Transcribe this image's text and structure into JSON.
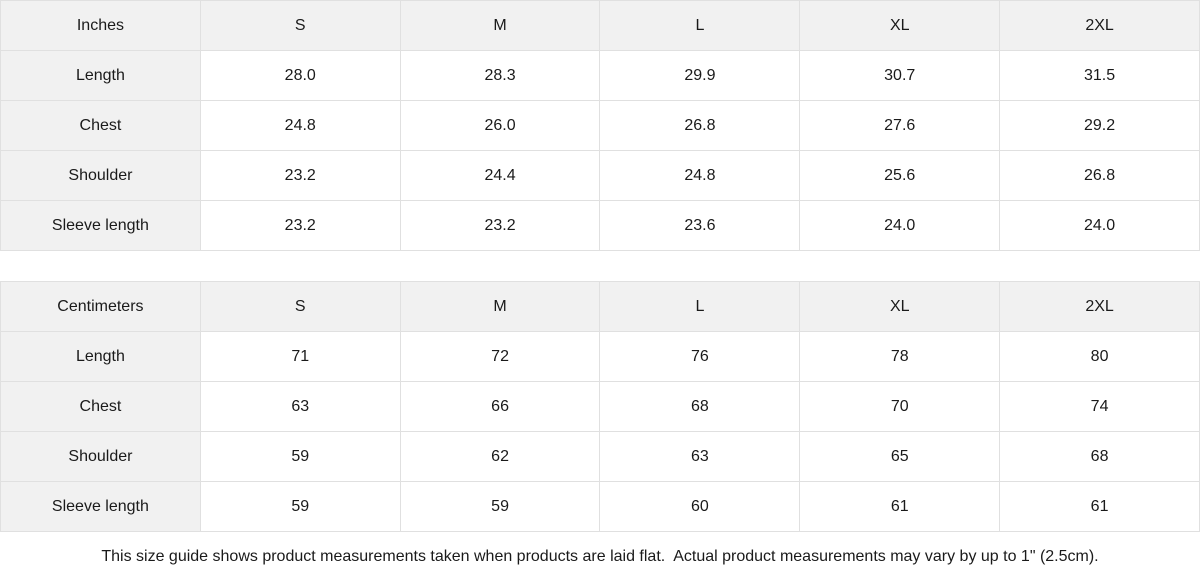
{
  "colors": {
    "header_bg": "#f1f1f1",
    "border": "#e0e0e0",
    "text": "#1a1a1a",
    "background": "#ffffff"
  },
  "chart_data": [
    {
      "type": "table",
      "title": "Inches",
      "columns": [
        "S",
        "M",
        "L",
        "XL",
        "2XL"
      ],
      "rows": [
        {
          "label": "Length",
          "values": [
            "28.0",
            "28.3",
            "29.9",
            "30.7",
            "31.5"
          ]
        },
        {
          "label": "Chest",
          "values": [
            "24.8",
            "26.0",
            "26.8",
            "27.6",
            "29.2"
          ]
        },
        {
          "label": "Shoulder",
          "values": [
            "23.2",
            "24.4",
            "24.8",
            "25.6",
            "26.8"
          ]
        },
        {
          "label": "Sleeve length",
          "values": [
            "23.2",
            "23.2",
            "23.6",
            "24.0",
            "24.0"
          ]
        }
      ]
    },
    {
      "type": "table",
      "title": "Centimeters",
      "columns": [
        "S",
        "M",
        "L",
        "XL",
        "2XL"
      ],
      "rows": [
        {
          "label": "Length",
          "values": [
            "71",
            "72",
            "76",
            "78",
            "80"
          ]
        },
        {
          "label": "Chest",
          "values": [
            "63",
            "66",
            "68",
            "70",
            "74"
          ]
        },
        {
          "label": "Shoulder",
          "values": [
            "59",
            "62",
            "63",
            "65",
            "68"
          ]
        },
        {
          "label": "Sleeve length",
          "values": [
            "59",
            "59",
            "60",
            "61",
            "61"
          ]
        }
      ]
    }
  ],
  "footer": {
    "note": "This size guide shows product measurements taken when products are laid flat.  Actual product measurements may vary by up to 1\" (2.5cm)."
  }
}
